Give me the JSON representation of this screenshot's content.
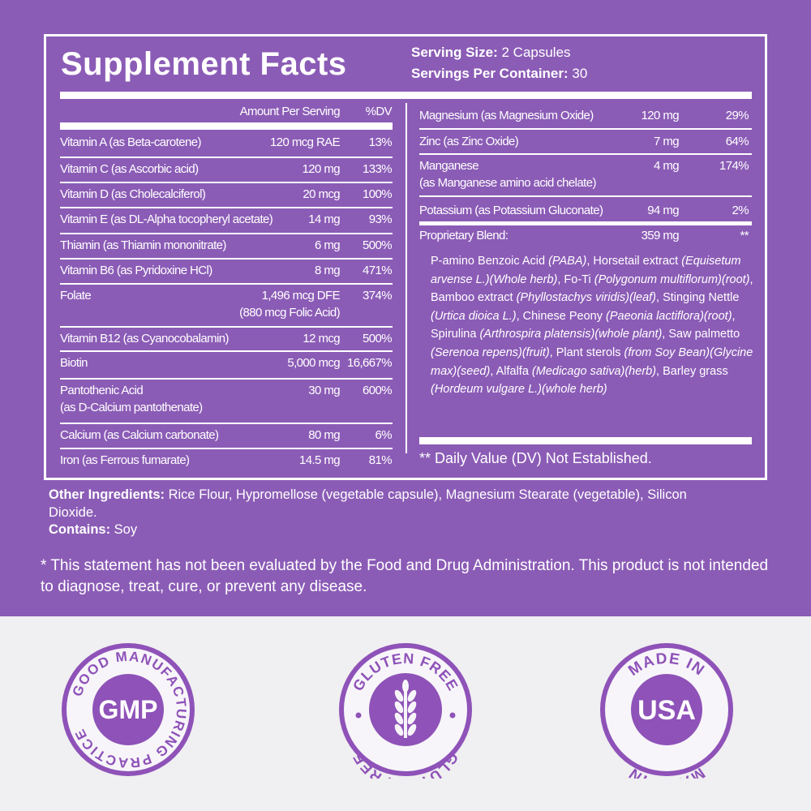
{
  "title": "Supplement Facts",
  "serving": {
    "size_label": "Serving Size:",
    "size_value": " 2 Capsules",
    "per_label": "Servings Per Container:",
    "per_value": " 30"
  },
  "left_header": {
    "amount": "Amount Per Serving",
    "dv": "%DV"
  },
  "left_rows": [
    {
      "name": "Vitamin A (as Beta-carotene)",
      "amount": "120 mcg RAE",
      "dv": "13%"
    },
    {
      "name": "Vitamin C (as Ascorbic acid)",
      "amount": "120 mg",
      "dv": "133%"
    },
    {
      "name": "Vitamin D (as Cholecalciferol)",
      "amount": "20 mcg",
      "dv": "100%"
    },
    {
      "name": "Vitamin E (as DL-Alpha tocopheryl acetate)",
      "amount": "14 mg",
      "dv": "93%"
    },
    {
      "name": "Thiamin (as Thiamin mononitrate)",
      "amount": "6 mg",
      "dv": "500%"
    },
    {
      "name": "Vitamin B6 (as Pyridoxine HCl)",
      "amount": "8 mg",
      "dv": "471%"
    },
    {
      "name": "Folate",
      "amount": "1,496 mcg DFE",
      "amount2": "(880 mcg Folic Acid)",
      "dv": "374%"
    },
    {
      "name": "Vitamin B12 (as Cyanocobalamin)",
      "amount": "12 mcg",
      "dv": "500%"
    },
    {
      "name": "Biotin",
      "amount": "5,000 mcg",
      "dv": "16,667%"
    },
    {
      "name": "Pantothenic Acid",
      "name2": "(as D-Calcium pantothenate)",
      "amount": "30 mg",
      "dv": "600%"
    },
    {
      "name": "Calcium (as Calcium carbonate)",
      "amount": "80 mg",
      "dv": "6%"
    },
    {
      "name": "Iron (as Ferrous fumarate)",
      "amount": "14.5 mg",
      "dv": "81%"
    }
  ],
  "right_rows": [
    {
      "name": "Magnesium (as Magnesium Oxide)",
      "amount": "120 mg",
      "dv": "29%"
    },
    {
      "name": "Zinc (as Zinc Oxide)",
      "amount": "7 mg",
      "dv": "64%"
    },
    {
      "name": "Manganese",
      "name2": "(as Manganese amino acid chelate)",
      "amount": "4 mg",
      "dv": "174%"
    },
    {
      "name": "Potassium (as Potassium Gluconate)",
      "amount": "94 mg",
      "dv": "2%"
    },
    {
      "name": "Proprietary Blend:",
      "amount": "359 mg",
      "dv": "**"
    }
  ],
  "blend": [
    {
      "t": "P-amino Benzoic Acid ",
      "i": false
    },
    {
      "t": "(PABA)",
      "i": true
    },
    {
      "t": ", Horsetail extract ",
      "i": false
    },
    {
      "t": "(Equisetum arvense L.)(Whole herb)",
      "i": true
    },
    {
      "t": ", Fo-Ti ",
      "i": false
    },
    {
      "t": "(Polygonum multiflorum)(root)",
      "i": true
    },
    {
      "t": ", Bamboo extract ",
      "i": false
    },
    {
      "t": "(Phyllostachys viridis)(leaf)",
      "i": true
    },
    {
      "t": ", Stinging Nettle  ",
      "i": false
    },
    {
      "t": "(Urtica dioica L.)",
      "i": true
    },
    {
      "t": ",  Chinese Peony ",
      "i": false
    },
    {
      "t": "(Paeonia lactiflora)(root)",
      "i": true
    },
    {
      "t": ", Spirulina ",
      "i": false
    },
    {
      "t": "(Arthrospira platensis)(whole plant)",
      "i": true
    },
    {
      "t": ", Saw palmetto ",
      "i": false
    },
    {
      "t": "(Serenoa repens)(fruit)",
      "i": true
    },
    {
      "t": ", Plant sterols ",
      "i": false
    },
    {
      "t": "(from Soy Bean)(Glycine max)(seed)",
      "i": true
    },
    {
      "t": ", Alfalfa ",
      "i": false
    },
    {
      "t": "(Medicago sativa)(herb)",
      "i": true
    },
    {
      "t": ", Barley grass ",
      "i": false
    },
    {
      "t": "(Hordeum vulgare L.)(whole herb)",
      "i": true
    }
  ],
  "dv_note": "** Daily Value (DV) Not Established.",
  "other_ingredients": {
    "label": "Other Ingredients:",
    "text": " Rice Flour, Hypromellose (vegetable capsule), Magnesium Stearate (vegetable), Silicon Dioxide.",
    "contains_label": "Contains:",
    "contains_text": " Soy"
  },
  "disclaimer": "* This statement has not been evaluated by the Food and Drug Administration. This product is not intended to diagnose, treat, cure, or prevent any disease.",
  "badges": {
    "gmp": {
      "center": "GMP",
      "ring": "GOOD MANUFACTURING PRACTICE"
    },
    "gluten": {
      "top": "GLUTEN FREE",
      "bottom": "GLUTEN FREE",
      "icon": "wheat-icon"
    },
    "usa": {
      "top": "MADE IN",
      "center": "USA",
      "bottom": "MADE IN"
    }
  },
  "colors": {
    "purple": "#8b5cb6",
    "badge_purple": "#8e52b8",
    "badge_light": "#f7f5f9"
  }
}
